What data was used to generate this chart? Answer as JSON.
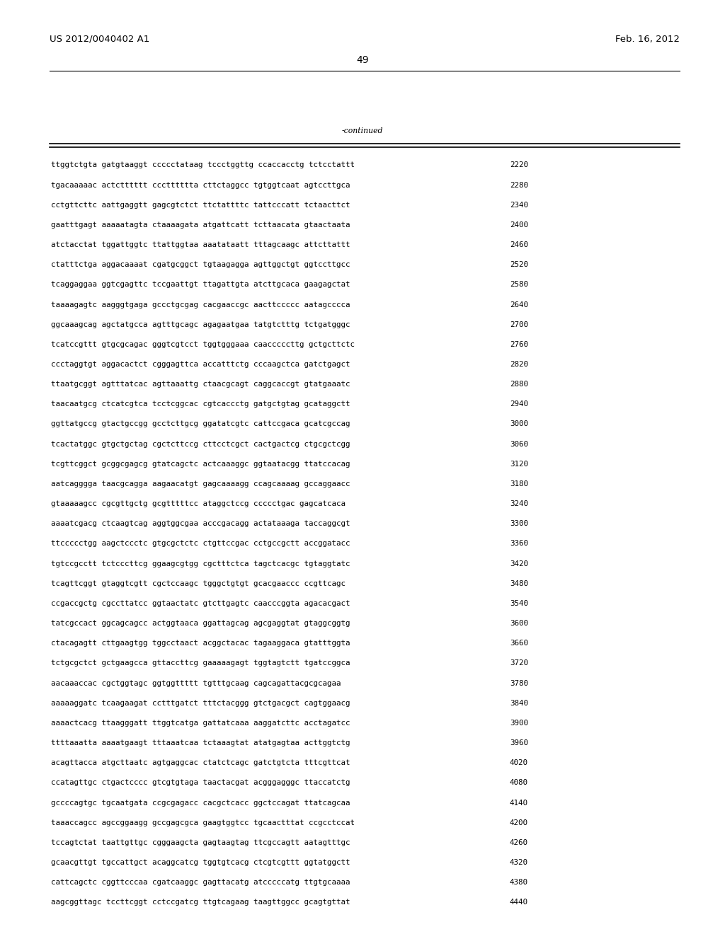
{
  "header_left": "US 2012/0040402 A1",
  "header_right": "Feb. 16, 2012",
  "page_number": "49",
  "continued_label": "-continued",
  "background_color": "#ffffff",
  "text_color": "#000000",
  "font_size_header": 9.5,
  "font_size_body": 7.8,
  "font_size_page": 10,
  "sequence_lines": [
    [
      "ttggtctgta gatgtaaggt ccccctataag tccctggttg ccaccacctg tctcctattt",
      "2220"
    ],
    [
      "tgacaaaaac actctttttt ccctttttta cttctaggcc tgtggtcaat agtccttgca",
      "2280"
    ],
    [
      "cctgttcttc aattgaggtt gagcgtctct ttctattttc tattcccatt tctaacttct",
      "2340"
    ],
    [
      "gaatttgagt aaaaatagta ctaaaagata atgattcatt tcttaacata gtaactaata",
      "2400"
    ],
    [
      "atctacctat tggattggtc ttattggtaa aaatataatt tttagcaagc attcttattt",
      "2460"
    ],
    [
      "ctatttctga aggacaaaat cgatgcggct tgtaagagga agttggctgt ggtccttgcc",
      "2520"
    ],
    [
      "tcaggaggaa ggtcgagttc tccgaattgt ttagattgta atcttgcaca gaagagctat",
      "2580"
    ],
    [
      "taaaagagtc aagggtgaga gccctgcgag cacgaaccgc aacttccccc aatagcccca",
      "2640"
    ],
    [
      "ggcaaagcag agctatgcca agtttgcagc agagaatgaa tatgtctttg tctgatgggc",
      "2700"
    ],
    [
      "tcatccgttt gtgcgcagac gggtcgtcct tggtgggaaa caacccccttg gctgcttctc",
      "2760"
    ],
    [
      "ccctaggtgt aggacactct cgggagttca accatttctg cccaagctca gatctgagct",
      "2820"
    ],
    [
      "ttaatgcggt agtttatcac agttaaattg ctaacgcagt caggcaccgt gtatgaaatc",
      "2880"
    ],
    [
      "taacaatgcg ctcatcgtca tcctcggcac cgtcaccctg gatgctgtag gcataggctt",
      "2940"
    ],
    [
      "ggttatgccg gtactgccgg gcctcttgcg ggatatcgtc cattccgaca gcatcgccag",
      "3000"
    ],
    [
      "tcactatggc gtgctgctag cgctcttccg cttcctcgct cactgactcg ctgcgctcgg",
      "3060"
    ],
    [
      "tcgttcggct gcggcgagcg gtatcagctc actcaaaggc ggtaatacgg ttatccacag",
      "3120"
    ],
    [
      "aatcagggga taacgcagga aagaacatgt gagcaaaagg ccagcaaaag gccaggaacc",
      "3180"
    ],
    [
      "gtaaaaagcc cgcgttgctg gcgtttttcc ataggctccg ccccctgac gagcatcaca",
      "3240"
    ],
    [
      "aaaatcgacg ctcaagtcag aggtggcgaa acccgacagg actataaaga taccaggcgt",
      "3300"
    ],
    [
      "ttccccctgg aagctccctc gtgcgctctc ctgttccgac cctgccgctt accggatacc",
      "3360"
    ],
    [
      "tgtccgcctt tctcccttcg ggaagcgtgg cgctttctca tagctcacgc tgtaggtatc",
      "3420"
    ],
    [
      "tcagttcggt gtaggtcgtt cgctccaagc tgggctgtgt gcacgaaccc ccgttcagc",
      "3480"
    ],
    [
      "ccgaccgctg cgccttatcc ggtaactatc gtcttgagtc caacccggta agacacgact",
      "3540"
    ],
    [
      "tatcgccact ggcagcagcc actggtaaca ggattagcag agcgaggtat gtaggcggtg",
      "3600"
    ],
    [
      "ctacagagtt cttgaagtgg tggcctaact acggctacac tagaaggaca gtatttggta",
      "3660"
    ],
    [
      "tctgcgctct gctgaagcca gttaccttcg gaaaaagagt tggtagtctt tgatccggca",
      "3720"
    ],
    [
      "aacaaaccac cgctggtagc ggtggttttt tgtttgcaag cagcagattacgcgcagaa",
      "3780"
    ],
    [
      "aaaaaggatc tcaagaagat cctttgatct tttctacggg gtctgacgct cagtggaacg",
      "3840"
    ],
    [
      "aaaactcacg ttaagggatt ttggtcatga gattatcaaa aaggatcttc acctagatcc",
      "3900"
    ],
    [
      "ttttaaatta aaaatgaagt tttaaatcaa tctaaagtat atatgagtaa acttggtctg",
      "3960"
    ],
    [
      "acagttacca atgcttaatc agtgaggcac ctatctcagc gatctgtcta tttcgttcat",
      "4020"
    ],
    [
      "ccatagttgc ctgactcccc gtcgtgtaga taactacgat acgggagggc ttaccatctg",
      "4080"
    ],
    [
      "gccccagtgc tgcaatgata ccgcgagacc cacgctcacc ggctccagat ttatcagcaa",
      "4140"
    ],
    [
      "taaaccagcc agccggaagg gccgagcgca gaagtggtcc tgcaactttat ccgcctccat",
      "4200"
    ],
    [
      "tccagtctat taattgttgc cgggaagcta gagtaagtag ttcgccagtt aatagtttgc",
      "4260"
    ],
    [
      "gcaacgttgt tgccattgct acaggcatcg tggtgtcacg ctcgtcgttt ggtatggctt",
      "4320"
    ],
    [
      "cattcagctc cggttcccaa cgatcaaggc gagttacatg atcccccatg ttgtgcaaaa",
      "4380"
    ],
    [
      "aagcggttagc tccttcggt cctccgatcg ttgtcagaag taagttggcc gcagtgttat",
      "4440"
    ]
  ]
}
